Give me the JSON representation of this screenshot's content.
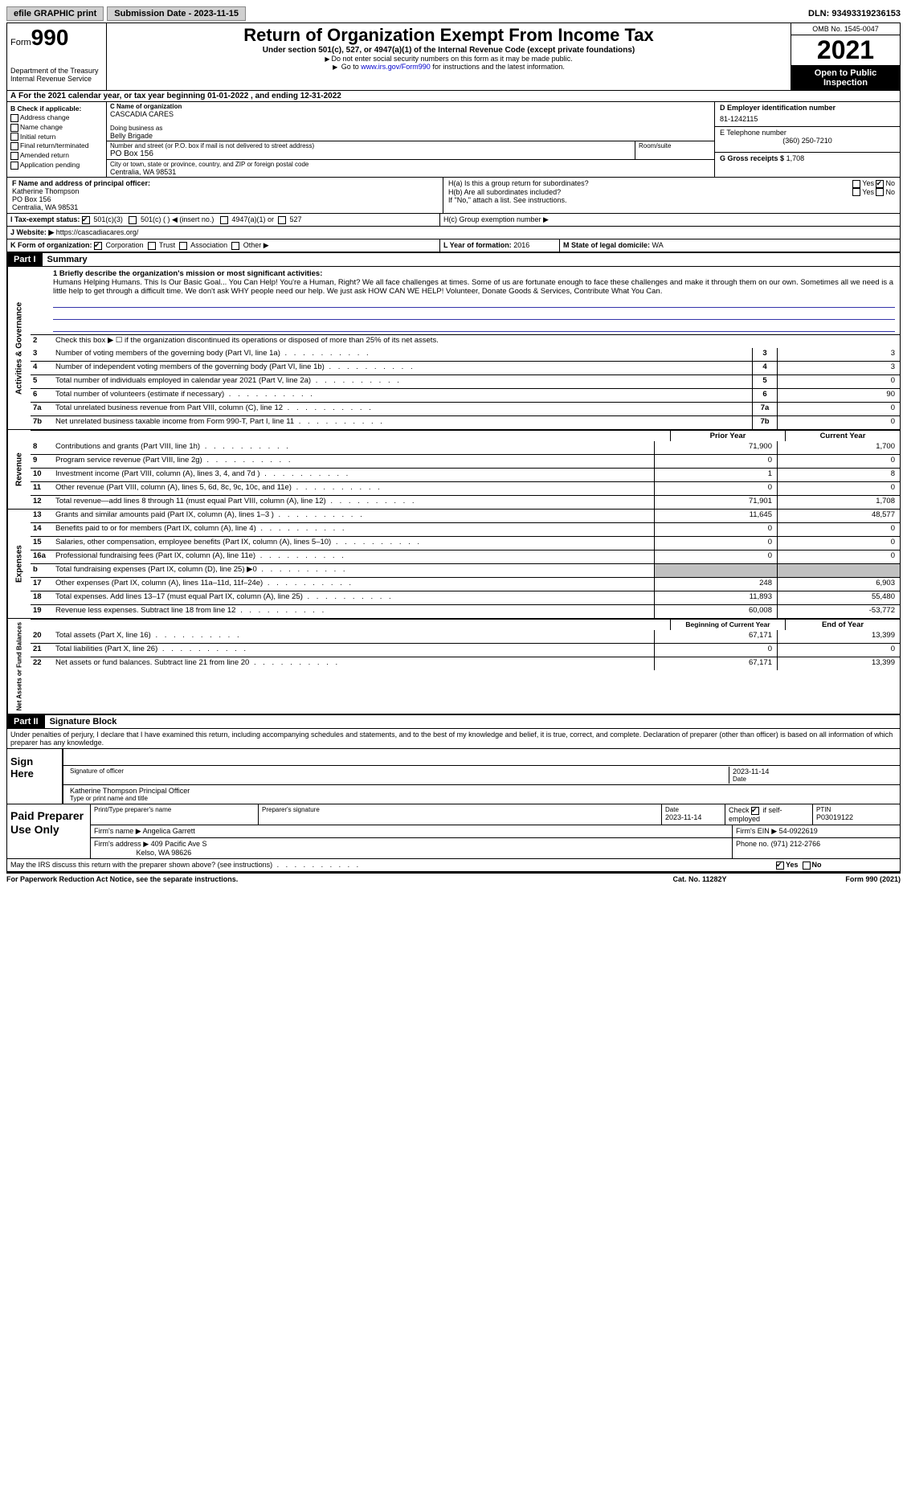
{
  "top": {
    "efile": "efile GRAPHIC print",
    "submission": "Submission Date - 2023-11-15",
    "dln_label": "DLN:",
    "dln": "93493319236153"
  },
  "header": {
    "form_word": "Form",
    "form_num": "990",
    "dept": "Department of the Treasury",
    "irs": "Internal Revenue Service",
    "title": "Return of Organization Exempt From Income Tax",
    "sub": "Under section 501(c), 527, or 4947(a)(1) of the Internal Revenue Code (except private foundations)",
    "note1": "Do not enter social security numbers on this form as it may be made public.",
    "note2_pre": "Go to ",
    "note2_link": "www.irs.gov/Form990",
    "note2_post": " for instructions and the latest information.",
    "omb": "OMB No. 1545-0047",
    "year": "2021",
    "open": "Open to Public Inspection"
  },
  "row_a": "For the 2021 calendar year, or tax year beginning 01-01-2022   , and ending 12-31-2022",
  "b": {
    "label": "B Check if applicable:",
    "addr": "Address change",
    "name": "Name change",
    "initial": "Initial return",
    "final": "Final return/terminated",
    "amended": "Amended return",
    "pending": "Application pending"
  },
  "c": {
    "name_label": "C Name of organization",
    "name": "CASCADIA CARES",
    "dba_label": "Doing business as",
    "dba": "Belly Brigade",
    "street_label": "Number and street (or P.O. box if mail is not delivered to street address)",
    "street": "PO Box 156",
    "suite_label": "Room/suite",
    "city_label": "City or town, state or province, country, and ZIP or foreign postal code",
    "city": "Centralia, WA  98531"
  },
  "d": {
    "ein_label": "D Employer identification number",
    "ein": "81-1242115",
    "phone_label": "E Telephone number",
    "phone": "(360) 250-7210",
    "gross_label": "G Gross receipts $",
    "gross": "1,708"
  },
  "f": {
    "label": "F  Name and address of principal officer:",
    "name": "Katherine Thompson",
    "street": "PO Box 156",
    "city": "Centralia, WA  98531"
  },
  "h": {
    "a": "H(a)  Is this a group return for subordinates?",
    "b": "H(b)  Are all subordinates included?",
    "note": "If \"No,\" attach a list. See instructions.",
    "c": "H(c)  Group exemption number ▶",
    "yes": "Yes",
    "no": "No"
  },
  "i": {
    "label": "I  Tax-exempt status:",
    "c3": "501(c)(3)",
    "c": "501(c) (  ) ◀ (insert no.)",
    "a1": "4947(a)(1) or",
    "527": "527"
  },
  "j": {
    "label": "J  Website: ▶",
    "url": "https://cascadiacares.org/"
  },
  "k": {
    "label": "K Form of organization:",
    "corp": "Corporation",
    "trust": "Trust",
    "assoc": "Association",
    "other": "Other ▶"
  },
  "l": {
    "label": "L Year of formation:",
    "val": "2016"
  },
  "m": {
    "label": "M State of legal domicile:",
    "val": "WA"
  },
  "part1": {
    "header": "Part I",
    "title": "Summary"
  },
  "summary": {
    "l1_label": "1  Briefly describe the organization's mission or most significant activities:",
    "l1_text": "Humans Helping Humans. This Is Our Basic Goal... You Can Help! You're a Human, Right? We all face challenges at times. Some of us are fortunate enough to face these challenges and make it through them on our own. Sometimes all we need is a little help to get through a difficult time. We don't ask WHY people need our help. We just ask HOW CAN WE HELP! Volunteer, Donate Goods & Services, Contribute What You Can.",
    "l2": "Check this box ▶ ☐  if the organization discontinued its operations or disposed of more than 25% of its net assets.",
    "rows_ag": [
      {
        "n": "3",
        "desc": "Number of voting members of the governing body (Part VI, line 1a)",
        "box": "3",
        "val": "3"
      },
      {
        "n": "4",
        "desc": "Number of independent voting members of the governing body (Part VI, line 1b)",
        "box": "4",
        "val": "3"
      },
      {
        "n": "5",
        "desc": "Total number of individuals employed in calendar year 2021 (Part V, line 2a)",
        "box": "5",
        "val": "0"
      },
      {
        "n": "6",
        "desc": "Total number of volunteers (estimate if necessary)",
        "box": "6",
        "val": "90"
      },
      {
        "n": "7a",
        "desc": "Total unrelated business revenue from Part VIII, column (C), line 12",
        "box": "7a",
        "val": "0"
      },
      {
        "n": "7b",
        "desc": "Net unrelated business taxable income from Form 990-T, Part I, line 11",
        "box": "7b",
        "val": "0"
      }
    ],
    "prior": "Prior Year",
    "current": "Current Year",
    "rev_rows": [
      {
        "n": "8",
        "desc": "Contributions and grants (Part VIII, line 1h)",
        "v1": "71,900",
        "v2": "1,700"
      },
      {
        "n": "9",
        "desc": "Program service revenue (Part VIII, line 2g)",
        "v1": "0",
        "v2": "0"
      },
      {
        "n": "10",
        "desc": "Investment income (Part VIII, column (A), lines 3, 4, and 7d )",
        "v1": "1",
        "v2": "8"
      },
      {
        "n": "11",
        "desc": "Other revenue (Part VIII, column (A), lines 5, 6d, 8c, 9c, 10c, and 11e)",
        "v1": "0",
        "v2": "0"
      },
      {
        "n": "12",
        "desc": "Total revenue—add lines 8 through 11 (must equal Part VIII, column (A), line 12)",
        "v1": "71,901",
        "v2": "1,708"
      }
    ],
    "exp_rows": [
      {
        "n": "13",
        "desc": "Grants and similar amounts paid (Part IX, column (A), lines 1–3 )",
        "v1": "11,645",
        "v2": "48,577"
      },
      {
        "n": "14",
        "desc": "Benefits paid to or for members (Part IX, column (A), line 4)",
        "v1": "0",
        "v2": "0"
      },
      {
        "n": "15",
        "desc": "Salaries, other compensation, employee benefits (Part IX, column (A), lines 5–10)",
        "v1": "0",
        "v2": "0"
      },
      {
        "n": "16a",
        "desc": "Professional fundraising fees (Part IX, column (A), line 11e)",
        "v1": "0",
        "v2": "0"
      },
      {
        "n": "b",
        "desc": "Total fundraising expenses (Part IX, column (D), line 25) ▶0",
        "v1": "",
        "v2": "",
        "grey": true
      },
      {
        "n": "17",
        "desc": "Other expenses (Part IX, column (A), lines 11a–11d, 11f–24e)",
        "v1": "248",
        "v2": "6,903"
      },
      {
        "n": "18",
        "desc": "Total expenses. Add lines 13–17 (must equal Part IX, column (A), line 25)",
        "v1": "11,893",
        "v2": "55,480"
      },
      {
        "n": "19",
        "desc": "Revenue less expenses. Subtract line 18 from line 12",
        "v1": "60,008",
        "v2": "-53,772"
      }
    ],
    "begin": "Beginning of Current Year",
    "end": "End of Year",
    "net_rows": [
      {
        "n": "20",
        "desc": "Total assets (Part X, line 16)",
        "v1": "67,171",
        "v2": "13,399"
      },
      {
        "n": "21",
        "desc": "Total liabilities (Part X, line 26)",
        "v1": "0",
        "v2": "0"
      },
      {
        "n": "22",
        "desc": "Net assets or fund balances. Subtract line 21 from line 20",
        "v1": "67,171",
        "v2": "13,399"
      }
    ]
  },
  "sides": {
    "ag": "Activities & Governance",
    "rev": "Revenue",
    "exp": "Expenses",
    "net": "Net Assets or Fund Balances"
  },
  "part2": {
    "header": "Part II",
    "title": "Signature Block",
    "text": "Under penalties of perjury, I declare that I have examined this return, including accompanying schedules and statements, and to the best of my knowledge and belief, it is true, correct, and complete. Declaration of preparer (other than officer) is based on all information of which preparer has any knowledge."
  },
  "sign": {
    "here": "Sign Here",
    "sig_label": "Signature of officer",
    "date": "2023-11-14",
    "date_label": "Date",
    "name": "Katherine Thompson Principal Officer",
    "name_label": "Type or print name and title"
  },
  "paid": {
    "label": "Paid Preparer Use Only",
    "print_label": "Print/Type preparer's name",
    "sig_label": "Preparer's signature",
    "date_label": "Date",
    "date": "2023-11-14",
    "check_label": "Check",
    "self_emp": "if self-employed",
    "ptin_label": "PTIN",
    "ptin": "P03019122",
    "firm_name_label": "Firm's name    ▶",
    "firm_name": "Angelica Garrett",
    "firm_ein_label": "Firm's EIN ▶",
    "firm_ein": "54-0922619",
    "firm_addr_label": "Firm's address ▶",
    "firm_addr1": "409 Pacific Ave S",
    "firm_addr2": "Kelso, WA  98626",
    "phone_label": "Phone no.",
    "phone": "(971) 212-2766"
  },
  "discuss": "May the IRS discuss this return with the preparer shown above? (see instructions)",
  "footer": {
    "left": "For Paperwork Reduction Act Notice, see the separate instructions.",
    "mid": "Cat. No. 11282Y",
    "right": "Form 990 (2021)"
  }
}
